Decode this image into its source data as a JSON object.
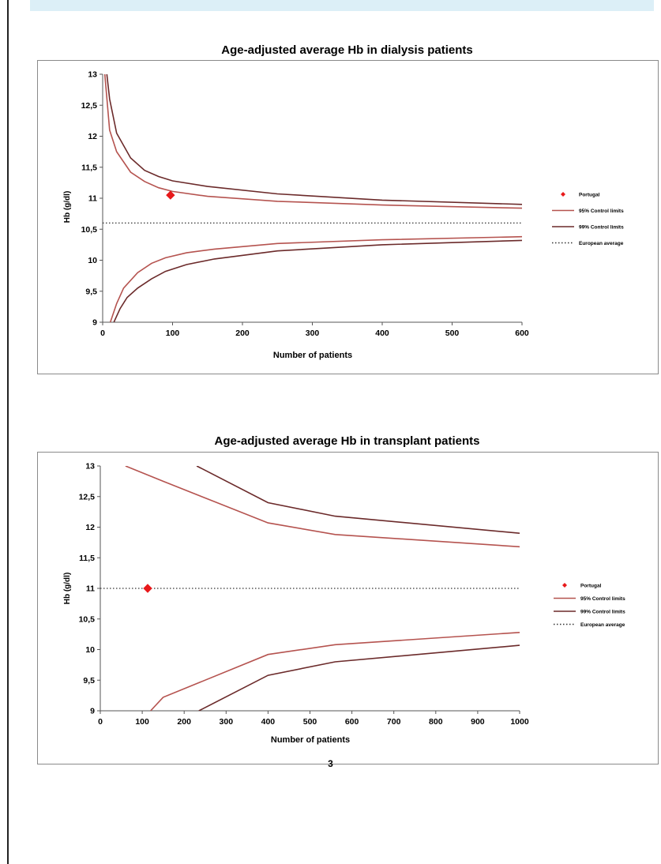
{
  "page": {
    "page_number": "3"
  },
  "colors": {
    "inner_limit": "#b5534f",
    "outer_limit": "#6b2a2a",
    "portugal": "#e8191b",
    "european_average": "#333333"
  },
  "chart_data": [
    {
      "type": "line",
      "title": "Age-adjusted average Hb in dialysis patients",
      "xlabel": "Number of patients",
      "ylabel": "Hb (g/dl)",
      "xlim": [
        0,
        600
      ],
      "ylim": [
        9,
        13
      ],
      "xticks": [
        0,
        100,
        200,
        300,
        400,
        500,
        600
      ],
      "xtick_labels": [
        "0",
        "100",
        "200",
        "300",
        "400",
        "500",
        "600"
      ],
      "yticks": [
        9,
        9.5,
        10,
        10.5,
        11,
        11.5,
        12,
        12.5,
        13
      ],
      "ytick_labels": [
        "9",
        "9,5",
        "10",
        "10,5",
        "11",
        "11,5",
        "12",
        "12,5",
        "13"
      ],
      "legend_position": "right",
      "legend": [
        "Portugal",
        "95% Control limits",
        "99% Control limits",
        "European average"
      ],
      "series": [
        {
          "name": "95% Control limits",
          "legend_index": 1,
          "color_key": "inner_limit",
          "style": "solid",
          "x": [
            3,
            10,
            20,
            40,
            60,
            80,
            100,
            150,
            250,
            400,
            600
          ],
          "y": [
            13.0,
            12.1,
            11.75,
            11.42,
            11.27,
            11.17,
            11.11,
            11.03,
            10.95,
            10.89,
            10.84
          ]
        },
        {
          "name": "95% Control limits",
          "legend_index": null,
          "color_key": "inner_limit",
          "style": "solid",
          "x": [
            11,
            20,
            30,
            50,
            70,
            90,
            120,
            160,
            250,
            400,
            600
          ],
          "y": [
            9.0,
            9.3,
            9.55,
            9.8,
            9.95,
            10.04,
            10.12,
            10.18,
            10.27,
            10.33,
            10.38
          ]
        },
        {
          "name": "99% Control limits",
          "legend_index": 2,
          "color_key": "outer_limit",
          "style": "solid",
          "x": [
            6,
            10,
            20,
            40,
            60,
            80,
            100,
            150,
            250,
            400,
            600
          ],
          "y": [
            13.0,
            12.6,
            12.05,
            11.65,
            11.45,
            11.35,
            11.28,
            11.19,
            11.07,
            10.97,
            10.9
          ]
        },
        {
          "name": "99% Control limits",
          "legend_index": null,
          "color_key": "outer_limit",
          "style": "solid",
          "x": [
            16,
            25,
            35,
            50,
            70,
            90,
            120,
            160,
            250,
            400,
            600
          ],
          "y": [
            9.0,
            9.22,
            9.4,
            9.55,
            9.7,
            9.82,
            9.93,
            10.02,
            10.15,
            10.25,
            10.32
          ]
        },
        {
          "name": "European average",
          "legend_index": 3,
          "color_key": "european_average",
          "style": "dotted",
          "x": [
            0,
            600
          ],
          "y": [
            10.6,
            10.6
          ]
        },
        {
          "name": "Portugal",
          "legend_index": 0,
          "color_key": "portugal",
          "style": "marker",
          "x": [
            97
          ],
          "y": [
            11.05
          ]
        }
      ]
    },
    {
      "type": "line",
      "title": "Age-adjusted average Hb in transplant patients",
      "xlabel": "Number of patients",
      "ylabel": "Hb (g/dl)",
      "xlim": [
        0,
        1000
      ],
      "ylim": [
        9,
        13
      ],
      "xticks": [
        0,
        100,
        200,
        300,
        400,
        500,
        600,
        700,
        800,
        900,
        1000
      ],
      "xtick_labels": [
        "0",
        "100",
        "200",
        "300",
        "400",
        "500",
        "600",
        "700",
        "800",
        "900",
        "1000"
      ],
      "yticks": [
        9,
        9.5,
        10,
        10.5,
        11,
        11.5,
        12,
        12.5,
        13
      ],
      "ytick_labels": [
        "9",
        "9,5",
        "10",
        "10,5",
        "11",
        "11,5",
        "12",
        "12,5",
        "13"
      ],
      "legend_position": "right",
      "legend": [
        "Portugal",
        "95% Control limits",
        "99% Control limits",
        "European average"
      ],
      "series": [
        {
          "name": "95% Control limits",
          "legend_index": 1,
          "color_key": "inner_limit",
          "style": "solid",
          "x": [
            60,
            150,
            400,
            560,
            1000
          ],
          "y": [
            13.0,
            12.75,
            12.07,
            11.88,
            11.68
          ]
        },
        {
          "name": "95% Control limits",
          "legend_index": null,
          "color_key": "inner_limit",
          "style": "solid",
          "x": [
            120,
            150,
            400,
            560,
            1000
          ],
          "y": [
            9.0,
            9.22,
            9.92,
            10.08,
            10.28
          ]
        },
        {
          "name": "99% Control limits",
          "legend_index": 2,
          "color_key": "outer_limit",
          "style": "solid",
          "x": [
            230,
            400,
            560,
            1000
          ],
          "y": [
            13.0,
            12.4,
            12.18,
            11.9
          ]
        },
        {
          "name": "99% Control limits",
          "legend_index": null,
          "color_key": "outer_limit",
          "style": "solid",
          "x": [
            235,
            400,
            560,
            1000
          ],
          "y": [
            9.0,
            9.58,
            9.8,
            10.07
          ]
        },
        {
          "name": "European average",
          "legend_index": 3,
          "color_key": "european_average",
          "style": "dotted",
          "x": [
            0,
            1000
          ],
          "y": [
            11.0,
            11.0
          ]
        },
        {
          "name": "Portugal",
          "legend_index": 0,
          "color_key": "portugal",
          "style": "marker",
          "x": [
            113
          ],
          "y": [
            11.0
          ]
        }
      ]
    }
  ]
}
